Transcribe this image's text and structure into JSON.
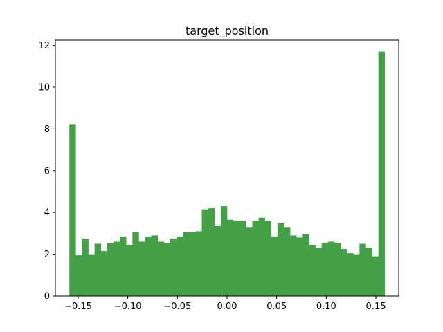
{
  "chart_data": {
    "type": "bar",
    "title": "target_position",
    "xlabel": "",
    "ylabel": "",
    "bar_color": "#43a047",
    "bar_opacity": 1,
    "xlim": [
      -0.173,
      0.173
    ],
    "ylim": [
      0,
      12.25
    ],
    "x_ticks": [
      -0.15,
      -0.1,
      -0.05,
      0.0,
      0.05,
      0.1,
      0.15
    ],
    "x_tick_labels": [
      "−0.15",
      "−0.10",
      "−0.05",
      "0.00",
      "0.05",
      "0.10",
      "0.15"
    ],
    "y_ticks": [
      0,
      2,
      4,
      6,
      8,
      10,
      12
    ],
    "y_tick_labels": [
      "0",
      "2",
      "4",
      "6",
      "8",
      "10",
      "12"
    ],
    "bin_start": -0.1589,
    "bin_end": 0.1589,
    "values": [
      8.2,
      1.95,
      2.75,
      2.0,
      2.5,
      2.15,
      2.55,
      2.6,
      2.85,
      2.45,
      3.05,
      2.6,
      2.85,
      2.9,
      2.6,
      2.55,
      2.75,
      2.85,
      3.05,
      3.05,
      3.1,
      4.15,
      4.2,
      3.35,
      4.3,
      3.65,
      3.6,
      3.6,
      3.3,
      3.6,
      3.75,
      3.6,
      2.85,
      3.5,
      3.3,
      2.9,
      2.8,
      2.95,
      2.45,
      2.3,
      2.55,
      2.6,
      2.55,
      2.25,
      2.05,
      2.0,
      2.5,
      2.3,
      1.9,
      11.7
    ]
  }
}
